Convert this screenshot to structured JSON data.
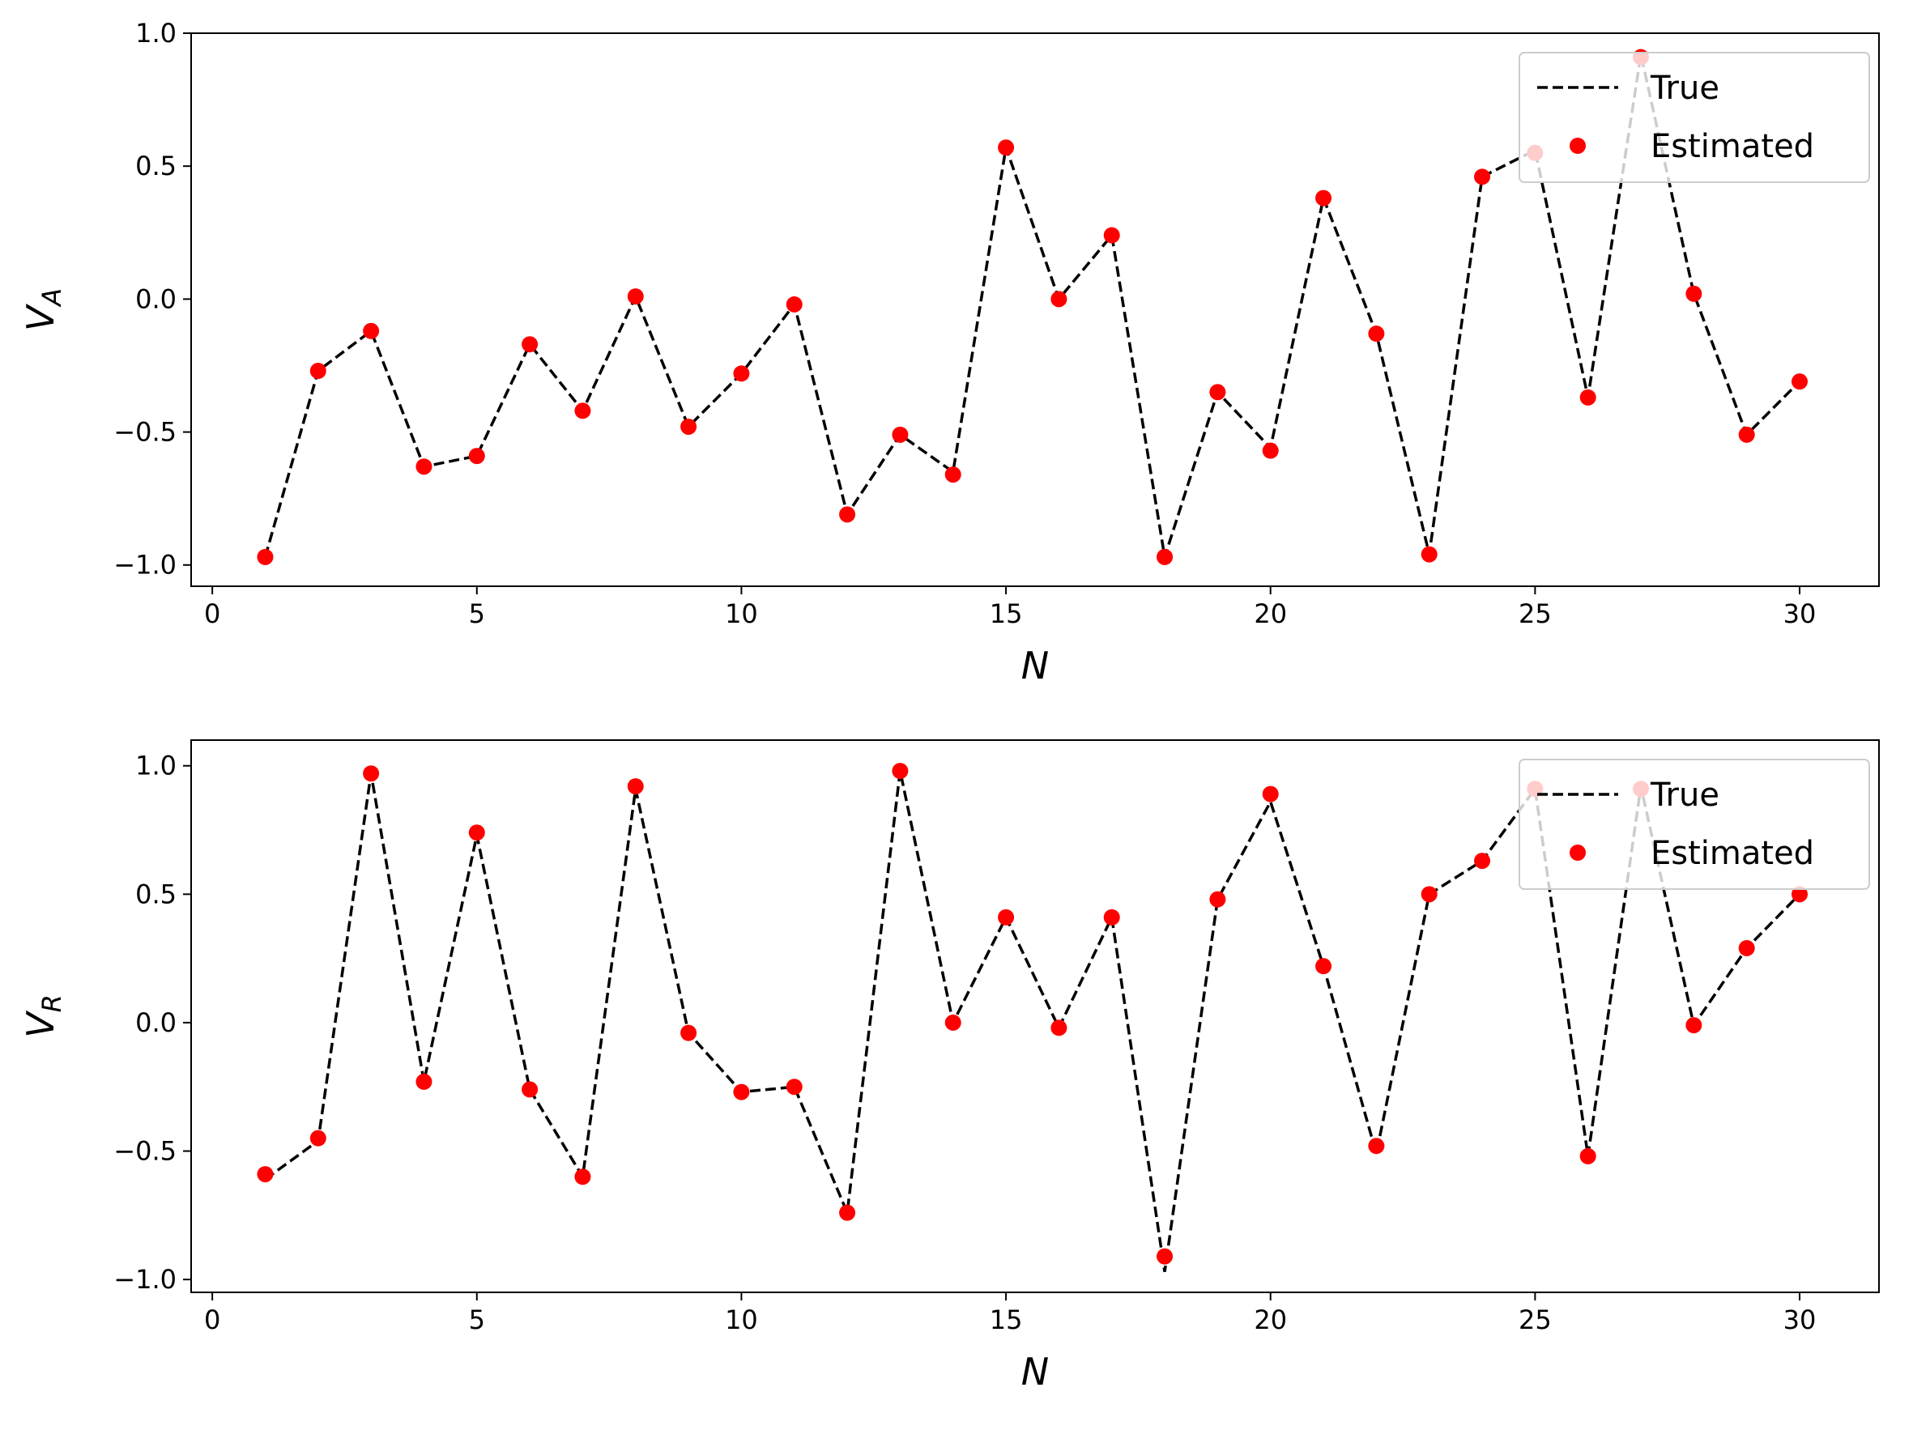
{
  "chart_data": [
    {
      "type": "line",
      "title": "",
      "xlabel": "N",
      "ylabel": {
        "base": "V",
        "sub": "A"
      },
      "xlim": [
        -0.4,
        31.5
      ],
      "ylim": [
        -1.08,
        1.0
      ],
      "xticks": [
        0,
        5,
        10,
        15,
        20,
        25,
        30
      ],
      "yticks": [
        -1.0,
        -0.5,
        0.0,
        0.5,
        1.0
      ],
      "xtick_labels": [
        "0",
        "5",
        "10",
        "15",
        "20",
        "25",
        "30"
      ],
      "ytick_labels": [
        "−1.0",
        "−0.5",
        "0.0",
        "0.5",
        "1.0"
      ],
      "legend_position": "top-right",
      "grid": false,
      "x": [
        1,
        2,
        3,
        4,
        5,
        6,
        7,
        8,
        9,
        10,
        11,
        12,
        13,
        14,
        15,
        16,
        17,
        18,
        19,
        20,
        21,
        22,
        23,
        24,
        25,
        26,
        27,
        28,
        29,
        30
      ],
      "series": [
        {
          "name": "True",
          "style": "dashed-line",
          "color": "#000000",
          "values": [
            -0.97,
            -0.27,
            -0.12,
            -0.63,
            -0.59,
            -0.17,
            -0.42,
            0.01,
            -0.48,
            -0.28,
            -0.02,
            -0.81,
            -0.51,
            -0.65,
            0.57,
            0.0,
            0.24,
            -0.97,
            -0.35,
            -0.56,
            0.38,
            -0.13,
            -0.96,
            0.46,
            0.56,
            -0.37,
            0.92,
            0.02,
            -0.51,
            -0.31
          ]
        },
        {
          "name": "Estimated",
          "style": "markers",
          "color": "#ff0000",
          "values": [
            -0.97,
            -0.27,
            -0.12,
            -0.63,
            -0.59,
            -0.17,
            -0.42,
            0.01,
            -0.48,
            -0.28,
            -0.02,
            -0.81,
            -0.51,
            -0.66,
            0.57,
            0.0,
            0.24,
            -0.97,
            -0.35,
            -0.57,
            0.38,
            -0.13,
            -0.96,
            0.46,
            0.55,
            -0.37,
            0.91,
            0.02,
            -0.51,
            -0.31
          ]
        }
      ]
    },
    {
      "type": "line",
      "title": "",
      "xlabel": "N",
      "ylabel": {
        "base": "V",
        "sub": "R"
      },
      "xlim": [
        -0.4,
        31.5
      ],
      "ylim": [
        -1.05,
        1.1
      ],
      "xticks": [
        0,
        5,
        10,
        15,
        20,
        25,
        30
      ],
      "yticks": [
        -1.0,
        -0.5,
        0.0,
        0.5,
        1.0
      ],
      "xtick_labels": [
        "0",
        "5",
        "10",
        "15",
        "20",
        "25",
        "30"
      ],
      "ytick_labels": [
        "−1.0",
        "−0.5",
        "0.0",
        "0.5",
        "1.0"
      ],
      "legend_position": "top-right",
      "grid": false,
      "x": [
        1,
        2,
        3,
        4,
        5,
        6,
        7,
        8,
        9,
        10,
        11,
        12,
        13,
        14,
        15,
        16,
        17,
        18,
        19,
        20,
        21,
        22,
        23,
        24,
        25,
        26,
        27,
        28,
        29,
        30
      ],
      "series": [
        {
          "name": "True",
          "style": "dashed-line",
          "color": "#000000",
          "values": [
            -0.61,
            -0.46,
            0.97,
            -0.23,
            0.73,
            -0.26,
            -0.6,
            0.91,
            -0.04,
            -0.27,
            -0.25,
            -0.74,
            0.98,
            0.0,
            0.41,
            -0.02,
            0.41,
            -0.97,
            0.48,
            0.86,
            0.22,
            -0.51,
            0.5,
            0.63,
            0.91,
            -0.52,
            0.92,
            -0.01,
            0.29,
            0.5
          ]
        },
        {
          "name": "Estimated",
          "style": "markers",
          "color": "#ff0000",
          "values": [
            -0.59,
            -0.45,
            0.97,
            -0.23,
            0.74,
            -0.26,
            -0.6,
            0.92,
            -0.04,
            -0.27,
            -0.25,
            -0.74,
            0.98,
            0.0,
            0.41,
            -0.02,
            0.41,
            -0.91,
            0.48,
            0.89,
            0.22,
            -0.48,
            0.5,
            0.63,
            0.91,
            -0.52,
            0.91,
            -0.01,
            0.29,
            0.5
          ]
        }
      ]
    }
  ]
}
